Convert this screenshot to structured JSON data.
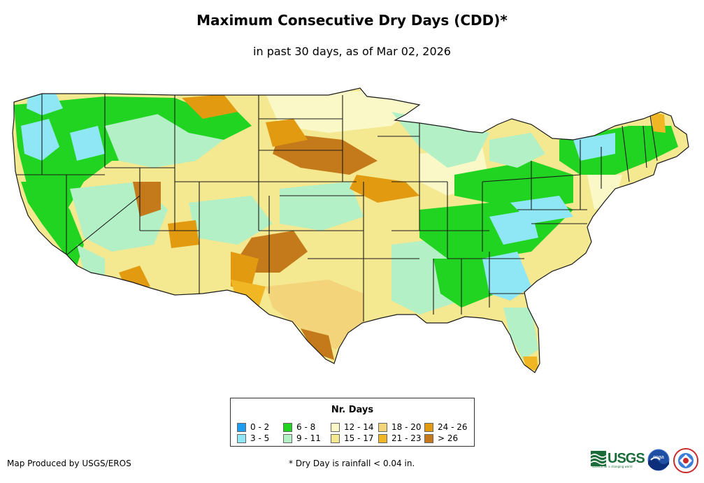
{
  "title": "Maximum Consecutive Dry Days (CDD)*",
  "subtitle": "in past 30 days, as of Mar 02, 2026",
  "legend": {
    "title": "Nr. Days",
    "items": [
      {
        "label": "0 - 2",
        "color": "#1e9ef0"
      },
      {
        "label": "3 - 5",
        "color": "#8fe7f5"
      },
      {
        "label": "6 - 8",
        "color": "#22d422"
      },
      {
        "label": "9 - 11",
        "color": "#b3f0c6"
      },
      {
        "label": "12 - 14",
        "color": "#fbf8c8"
      },
      {
        "label": "15 - 17",
        "color": "#f4e890"
      },
      {
        "label": "18 - 20",
        "color": "#f3d47a"
      },
      {
        "label": "21 - 23",
        "color": "#f0b623"
      },
      {
        "label": "24 - 26",
        "color": "#e29b10"
      },
      {
        "label": "> 26",
        "color": "#c47a1a"
      }
    ]
  },
  "footer": {
    "credit": "Map Produced by USGS/EROS",
    "note": "* Dry Day is rainfall < 0.04 in."
  },
  "logos": {
    "usgs": "USGS",
    "usgs_tagline": "science for a changing world",
    "noaa": "noaa",
    "nws_icon": "nws-logo-icon"
  }
}
